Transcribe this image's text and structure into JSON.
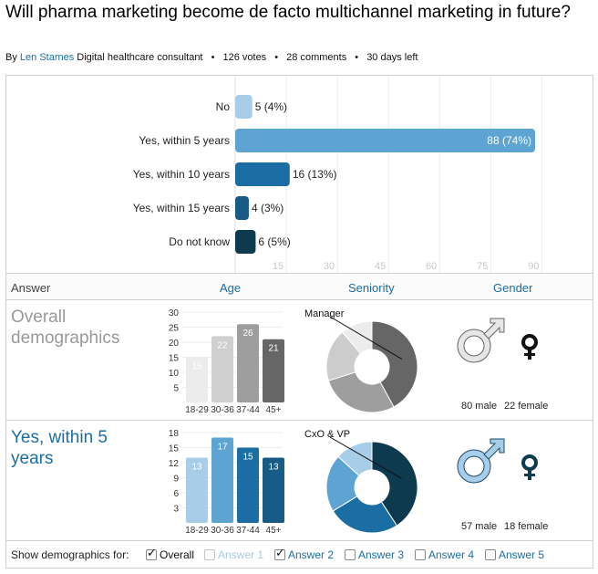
{
  "title": "Will pharma marketing become de facto multichannel marketing in future?",
  "byline": {
    "by": "By",
    "author": "Len Starnes",
    "role": "Digital healthcare consultant",
    "votes": "126 votes",
    "comments": "28 comments",
    "days_left": "30 days left",
    "bullet": "•"
  },
  "colors": {
    "link": "#1a6ea3",
    "bars": [
      "#a8cde8",
      "#5ea4d3",
      "#1a6ea3",
      "#175b86",
      "#0e3a4f"
    ],
    "age_overall": [
      "#ececec",
      "#cfcfcf",
      "#9e9e9e",
      "#666666"
    ],
    "age_answer": [
      "#a8cde8",
      "#5ea4d3",
      "#1a6ea3",
      "#175b86"
    ]
  },
  "chart_data": [
    {
      "type": "bar",
      "orientation": "horizontal",
      "categories": [
        "No",
        "Yes, within 5 years",
        "Yes, within 10 years",
        "Yes, within 15 years",
        "Do not know"
      ],
      "values": [
        5,
        88,
        16,
        4,
        6
      ],
      "labels": [
        "5 (4%)",
        "88 (74%)",
        "16 (13%)",
        "4 (3%)",
        "6 (5%)"
      ],
      "xticks": [
        "15",
        "30",
        "45",
        "60",
        "75",
        "90"
      ],
      "xlim": [
        0,
        90
      ],
      "grid": true
    },
    {
      "type": "bar",
      "name": "Overall demographics - Age",
      "categories": [
        "18-29",
        "30-36",
        "37-44",
        "45+"
      ],
      "values": [
        15,
        22,
        26,
        21
      ],
      "yticks": [
        "5",
        "10",
        "15",
        "20",
        "25",
        "30"
      ],
      "ylim": [
        0,
        30
      ]
    },
    {
      "type": "bar",
      "name": "Yes, within 5 years - Age",
      "categories": [
        "18-29",
        "30-36",
        "37-44",
        "45+"
      ],
      "values": [
        13,
        17,
        15,
        13
      ],
      "yticks": [
        "3",
        "6",
        "9",
        "12",
        "15",
        "18"
      ],
      "ylim": [
        0,
        18
      ]
    },
    {
      "type": "pie",
      "donut": true,
      "name": "Overall demographics - Seniority",
      "values": [
        45,
        30,
        20,
        12
      ],
      "colors": [
        "#666666",
        "#9e9e9e",
        "#cccccc",
        "#ececec"
      ],
      "callout": "Manager"
    },
    {
      "type": "pie",
      "donut": true,
      "name": "Yes, within 5 years - Seniority",
      "values": [
        40,
        25,
        20,
        13
      ],
      "colors": [
        "#0e3a4f",
        "#1a6ea3",
        "#5ea4d3",
        "#a8cde8"
      ],
      "callout": "CxO & VP"
    }
  ],
  "columns": {
    "answer": "Answer",
    "age": "Age",
    "seniority": "Seniority",
    "gender": "Gender"
  },
  "rows": [
    {
      "label": "Overall demographics",
      "male": "80 male",
      "female": "22 female"
    },
    {
      "label": "Yes, within 5 years",
      "male": "57 male",
      "female": "18 female"
    }
  ],
  "footer": {
    "label": "Show demographics for:",
    "options": [
      {
        "label": "Overall",
        "checked": true
      },
      {
        "label": "Answer 1",
        "checked": false
      },
      {
        "label": "Answer 2",
        "checked": true
      },
      {
        "label": "Answer 3",
        "checked": false
      },
      {
        "label": "Answer 4",
        "checked": false
      },
      {
        "label": "Answer 5",
        "checked": false
      }
    ]
  }
}
